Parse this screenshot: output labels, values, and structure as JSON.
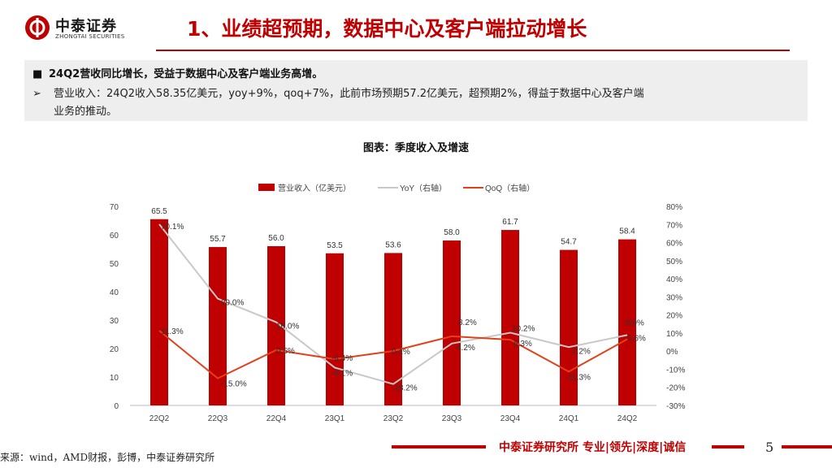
{
  "header": {
    "logo_cn": "中泰证券",
    "logo_en": "ZHONGTAI SECURITIES",
    "title": "1、业绩超预期，数据中心及客户端拉动增长"
  },
  "summary": {
    "bullet1": "24Q2营收同比增长，受益于数据中心及客户端业务高增。",
    "bullet2_line1": "营业收入：24Q2收入58.35亿美元，yoy+9%，qoq+7%，此前市场预期57.2亿美元，超预期2%，得益于数据中心及客户端",
    "bullet2_line2": "业务的推动。",
    "bullet1_marker": "■",
    "bullet2_marker": "➢"
  },
  "chart_title": "图表：季度收入及增速",
  "chart_data": {
    "type": "bar",
    "categories": [
      "22Q2",
      "22Q3",
      "22Q4",
      "23Q1",
      "23Q2",
      "23Q3",
      "23Q4",
      "24Q1",
      "24Q2"
    ],
    "series": [
      {
        "name": "营业收入（亿美元）",
        "kind": "bar",
        "axis": "left",
        "values": [
          65.5,
          55.7,
          56.0,
          53.5,
          53.6,
          58.0,
          61.7,
          54.7,
          58.4
        ],
        "labels": [
          "65.5",
          "55.7",
          "56.0",
          "53.5",
          "53.6",
          "58.0",
          "61.7",
          "54.7",
          "58.4"
        ],
        "color": "#c00000"
      },
      {
        "name": "YoY（右轴）",
        "kind": "line",
        "axis": "right",
        "values": [
          70.1,
          29.0,
          16.0,
          -9.1,
          -18.2,
          4.2,
          10.2,
          2.2,
          8.9
        ],
        "labels": [
          "70.1%",
          "29.0%",
          "16.0%",
          "-9.1%",
          "-18.2%",
          "4.2%",
          "10.2%",
          "2.2%",
          "8.9%"
        ],
        "color": "#c8c8c8"
      },
      {
        "name": "QoQ（右轴）",
        "kind": "line",
        "axis": "right",
        "values": [
          11.3,
          -15.0,
          0.6,
          -4.4,
          0.1,
          8.2,
          6.3,
          -11.3,
          6.6
        ],
        "labels": [
          "11.3%",
          "-15.0%",
          "0.6%",
          "-4.4%",
          "0.1%",
          "8.2%",
          "6.3%",
          "-11.3%",
          "6.6%"
        ],
        "color": "#e0401a"
      }
    ],
    "left_axis": {
      "min": 0,
      "max": 70,
      "ticks": [
        "0",
        "10",
        "20",
        "30",
        "40",
        "50",
        "60",
        "70"
      ]
    },
    "right_axis": {
      "min": -30,
      "max": 80,
      "ticks": [
        "-30%",
        "-20%",
        "-10%",
        "0%",
        "10%",
        "20%",
        "30%",
        "40%",
        "50%",
        "60%",
        "70%",
        "80%"
      ]
    },
    "legend_position": "top-center",
    "grid": false
  },
  "footer": {
    "slogan": "中泰证券研究所 专业|领先|深度|诚信",
    "page": "5",
    "source": "来源：wind，AMD财报，彭博，中泰证券研究所"
  }
}
